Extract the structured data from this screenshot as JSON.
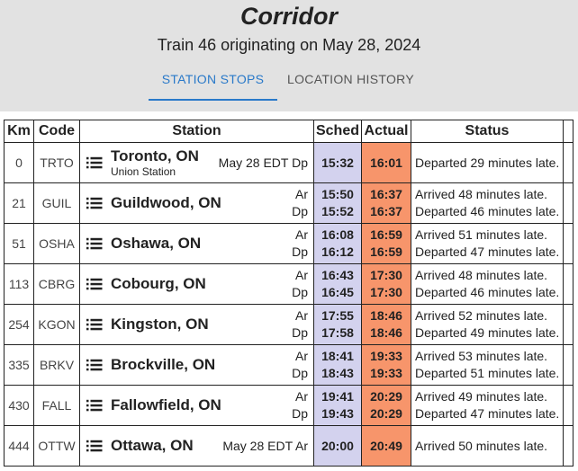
{
  "header": {
    "title": "Corridor",
    "subtitle": "Train 46 originating on May 28, 2024",
    "tabs": [
      "STATION STOPS",
      "LOCATION HISTORY"
    ],
    "active_tab": 0
  },
  "table": {
    "columns": [
      "Km",
      "Code",
      "Station",
      "Sched",
      "Actual",
      "Status"
    ],
    "rows": [
      {
        "km": 0,
        "code": "TRTO",
        "station": "Toronto, ON",
        "sub": "Union Station",
        "note": "May 28 EDT",
        "stops": [
          {
            "kind": "Dp",
            "sched": "15:32",
            "actual": "16:01",
            "status": "Departed 29 minutes late."
          }
        ]
      },
      {
        "km": 21,
        "code": "GUIL",
        "station": "Guildwood, ON",
        "stops": [
          {
            "kind": "Ar",
            "sched": "15:50",
            "actual": "16:37",
            "status": "Arrived 48 minutes late."
          },
          {
            "kind": "Dp",
            "sched": "15:52",
            "actual": "16:37",
            "status": "Departed 46 minutes late."
          }
        ]
      },
      {
        "km": 51,
        "code": "OSHA",
        "station": "Oshawa, ON",
        "stops": [
          {
            "kind": "Ar",
            "sched": "16:08",
            "actual": "16:59",
            "status": "Arrived 51 minutes late."
          },
          {
            "kind": "Dp",
            "sched": "16:12",
            "actual": "16:59",
            "status": "Departed 47 minutes late."
          }
        ]
      },
      {
        "km": 113,
        "code": "CBRG",
        "station": "Cobourg, ON",
        "stops": [
          {
            "kind": "Ar",
            "sched": "16:43",
            "actual": "17:30",
            "status": "Arrived 48 minutes late."
          },
          {
            "kind": "Dp",
            "sched": "16:45",
            "actual": "17:30",
            "status": "Departed 46 minutes late."
          }
        ]
      },
      {
        "km": 254,
        "code": "KGON",
        "station": "Kingston, ON",
        "stops": [
          {
            "kind": "Ar",
            "sched": "17:55",
            "actual": "18:46",
            "status": "Arrived 52 minutes late."
          },
          {
            "kind": "Dp",
            "sched": "17:58",
            "actual": "18:46",
            "status": "Departed 49 minutes late."
          }
        ]
      },
      {
        "km": 335,
        "code": "BRKV",
        "station": "Brockville, ON",
        "stops": [
          {
            "kind": "Ar",
            "sched": "18:41",
            "actual": "19:33",
            "status": "Arrived 53 minutes late."
          },
          {
            "kind": "Dp",
            "sched": "18:43",
            "actual": "19:33",
            "status": "Departed 51 minutes late."
          }
        ]
      },
      {
        "km": 430,
        "code": "FALL",
        "station": "Fallowfield, ON",
        "stops": [
          {
            "kind": "Ar",
            "sched": "19:41",
            "actual": "20:29",
            "status": "Arrived 49 minutes late."
          },
          {
            "kind": "Dp",
            "sched": "19:43",
            "actual": "20:29",
            "status": "Departed 47 minutes late."
          }
        ]
      },
      {
        "km": 444,
        "code": "OTTW",
        "station": "Ottawa, ON",
        "note": "May 28 EDT",
        "stops": [
          {
            "kind": "Ar",
            "sched": "20:00",
            "actual": "20:49",
            "status": "Arrived 50 minutes late."
          }
        ]
      }
    ]
  }
}
